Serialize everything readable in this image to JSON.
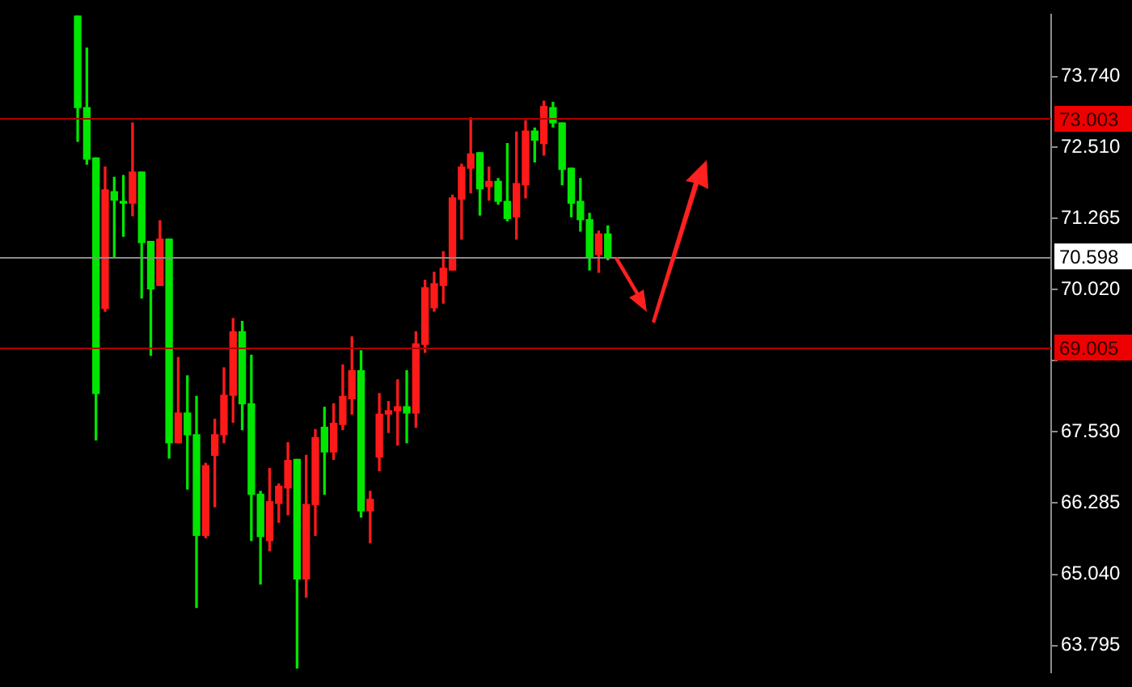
{
  "chart_data": {
    "type": "candlestick",
    "categories": [
      null,
      null,
      null,
      null,
      null,
      null,
      null,
      null,
      null,
      null,
      null,
      null,
      null,
      null,
      null,
      null,
      null,
      null,
      null,
      null,
      null,
      null,
      null,
      null,
      null,
      null,
      null,
      null,
      null,
      null,
      null,
      null,
      null,
      null,
      null,
      null,
      null,
      null,
      null,
      null,
      null,
      null,
      null,
      null,
      null,
      null,
      null,
      null,
      null,
      null,
      null,
      null,
      null,
      null,
      null,
      null,
      null,
      null,
      null,
      null,
      null,
      null,
      null,
      null,
      null,
      null,
      null,
      null,
      null,
      null,
      null,
      null,
      null,
      null,
      null,
      null,
      null,
      null,
      null,
      null,
      null,
      null,
      null,
      null,
      null,
      null,
      null,
      null,
      null,
      null,
      null,
      null,
      null,
      null,
      null,
      null,
      null,
      null,
      null,
      null,
      null,
      null,
      null,
      null,
      null,
      null,
      null,
      null,
      null,
      null,
      null,
      null,
      null,
      null,
      null
    ],
    "ohlc": [
      null,
      null,
      null,
      null,
      null,
      null,
      null,
      null,
      [
        74.8,
        74.8,
        72.61,
        73.2
      ],
      [
        73.2,
        74.24,
        72.21,
        72.3
      ],
      [
        72.32,
        72.32,
        67.39,
        68.2
      ],
      [
        69.69,
        72.16,
        69.64,
        71.76
      ],
      [
        71.73,
        71.98,
        70.59,
        71.58
      ],
      [
        71.56,
        72.01,
        70.95,
        71.53
      ],
      [
        71.53,
        72.93,
        71.31,
        72.07
      ],
      [
        72.07,
        72.07,
        69.87,
        70.84
      ],
      [
        70.86,
        70.86,
        68.87,
        70.03
      ],
      [
        70.09,
        71.22,
        70.09,
        70.9
      ],
      [
        70.9,
        70.9,
        67.07,
        67.34
      ],
      [
        67.34,
        68.83,
        67.34,
        67.86
      ],
      [
        67.86,
        68.51,
        66.53,
        67.48
      ],
      [
        67.48,
        68.15,
        64.46,
        65.72
      ],
      [
        65.72,
        66.98,
        65.68,
        66.94
      ],
      [
        67.12,
        67.75,
        66.22,
        67.48
      ],
      [
        67.48,
        68.65,
        67.34,
        68.17
      ],
      [
        68.17,
        69.51,
        67.7,
        69.28
      ],
      [
        69.28,
        69.46,
        67.57,
        68.02
      ],
      [
        68.02,
        68.87,
        65.63,
        66.44
      ],
      [
        66.44,
        66.49,
        64.87,
        65.7
      ],
      [
        65.63,
        66.89,
        65.45,
        66.31
      ],
      [
        66.28,
        66.62,
        65.95,
        66.58
      ],
      [
        66.55,
        67.34,
        66.08,
        67.03
      ],
      [
        67.05,
        67.05,
        63.4,
        64.96
      ],
      [
        64.96,
        67.12,
        64.64,
        66.26
      ],
      [
        66.26,
        67.57,
        65.72,
        67.43
      ],
      [
        67.61,
        67.96,
        66.44,
        67.18
      ],
      [
        67.18,
        68.02,
        67.05,
        67.68
      ],
      [
        67.66,
        68.7,
        67.57,
        68.15
      ],
      [
        68.11,
        69.19,
        67.84,
        68.6
      ],
      [
        68.6,
        68.95,
        66.04,
        66.15
      ],
      [
        66.15,
        66.49,
        65.59,
        66.35
      ],
      [
        67.09,
        68.2,
        66.85,
        67.84
      ],
      [
        67.84,
        68.06,
        67.52,
        67.9
      ],
      [
        67.9,
        68.44,
        67.3,
        67.97
      ],
      [
        67.97,
        68.6,
        67.34,
        67.86
      ],
      [
        67.86,
        69.28,
        67.61,
        69.07
      ],
      [
        69.06,
        70.18,
        68.92,
        70.05
      ],
      [
        69.7,
        70.32,
        69.64,
        70.12
      ],
      [
        70.09,
        70.68,
        69.78,
        70.39
      ],
      [
        70.36,
        71.67,
        70.36,
        71.62
      ],
      [
        71.6,
        72.21,
        70.9,
        72.16
      ],
      [
        72.14,
        73.02,
        71.71,
        72.39
      ],
      [
        72.41,
        72.41,
        71.32,
        71.78
      ],
      [
        71.82,
        72.16,
        71.58,
        71.91
      ],
      [
        71.91,
        71.96,
        71.51,
        71.56
      ],
      [
        71.56,
        72.57,
        71.22,
        71.26
      ],
      [
        71.29,
        72.77,
        70.9,
        71.87
      ],
      [
        71.85,
        72.97,
        71.62,
        72.79
      ],
      [
        72.79,
        72.84,
        72.25,
        72.63
      ],
      [
        72.57,
        73.31,
        72.37,
        73.22
      ],
      [
        73.2,
        73.29,
        72.86,
        72.93
      ],
      [
        72.93,
        72.93,
        71.85,
        72.12
      ],
      [
        72.14,
        72.14,
        71.29,
        71.53
      ],
      [
        71.56,
        71.96,
        71.04,
        71.24
      ],
      [
        71.24,
        71.35,
        70.36,
        70.59
      ],
      [
        70.63,
        71.04,
        70.32,
        70.99
      ],
      [
        70.99,
        71.13,
        70.54,
        70.59
      ],
      null,
      null,
      null,
      null,
      null,
      null,
      null,
      null,
      null,
      null,
      null,
      null,
      null,
      null,
      null,
      null,
      null,
      null,
      null,
      null,
      null,
      null,
      null,
      null,
      null,
      null,
      null,
      null,
      null,
      null,
      null,
      null,
      null,
      null,
      null,
      null,
      null,
      null,
      null,
      null,
      null,
      null,
      null,
      null,
      null,
      null,
      null,
      null
    ],
    "colors": [
      null,
      null,
      null,
      null,
      null,
      null,
      null,
      null,
      "#00e600",
      "#00e600",
      "#00e600",
      "#ff1a1a",
      "#00e600",
      "#00e600",
      "#ff1a1a",
      "#00e600",
      "#00e600",
      "#ff1a1a",
      "#00e600",
      "#ff1a1a",
      "#00e600",
      "#00e600",
      "#ff1a1a",
      "#ff1a1a",
      "#ff1a1a",
      "#ff1a1a",
      "#00e600",
      "#00e600",
      "#00e600",
      "#ff1a1a",
      "#ff1a1a",
      "#ff1a1a",
      "#00e600",
      "#ff1a1a",
      "#ff1a1a",
      "#00e600",
      "#ff1a1a",
      "#ff1a1a",
      "#ff1a1a",
      "#00e600",
      "#ff1a1a",
      "#ff1a1a",
      "#ff1a1a",
      "#ff1a1a",
      "#00e600",
      "#ff1a1a",
      "#ff1a1a",
      "#ff1a1a",
      "#ff1a1a",
      "#ff1a1a",
      "#ff1a1a",
      "#ff1a1a",
      "#00e600",
      "#ff1a1a",
      "#00e600",
      "#00e600",
      "#ff1a1a",
      "#ff1a1a",
      "#00e600",
      "#ff1a1a",
      "#00e600",
      "#00e600",
      "#00e600",
      "#00e600",
      "#00e600",
      "#ff1a1a",
      "#00e600",
      null,
      null,
      null,
      null,
      null,
      null,
      null,
      null,
      null,
      null,
      null,
      null,
      null,
      null,
      null,
      null,
      null,
      null,
      null,
      null,
      null,
      null,
      null,
      null,
      null,
      null,
      null,
      null,
      null,
      null,
      null,
      null,
      null,
      null,
      null,
      null,
      null,
      null,
      null,
      null,
      null,
      null,
      null,
      null,
      null,
      null,
      null,
      null
    ],
    "ylim": [
      63.33,
      74.82
    ],
    "yticks": [
      63.795,
      {
        "value": 65.04,
        "label": "65.040"
      },
      66.285,
      {
        "value": 67.53,
        "label": "67.530"
      },
      {
        "value": 68.775,
        "label": null
      },
      {
        "value": 70.02,
        "label": "70.020"
      },
      71.265,
      {
        "value": 72.51,
        "label": "72.510"
      },
      {
        "value": 73.74,
        "label": "73.740"
      }
    ],
    "ref_lines": [
      {
        "axis": "y",
        "value": 73.003,
        "label": "73.003",
        "color": "#b00000"
      },
      {
        "axis": "y",
        "value": 70.598,
        "label": "70.598",
        "color": "#8c8c8c"
      },
      {
        "axis": "y",
        "value": 69.005,
        "label": "69.005",
        "color": "#b00000"
      }
    ],
    "grid": false,
    "legend": false
  }
}
